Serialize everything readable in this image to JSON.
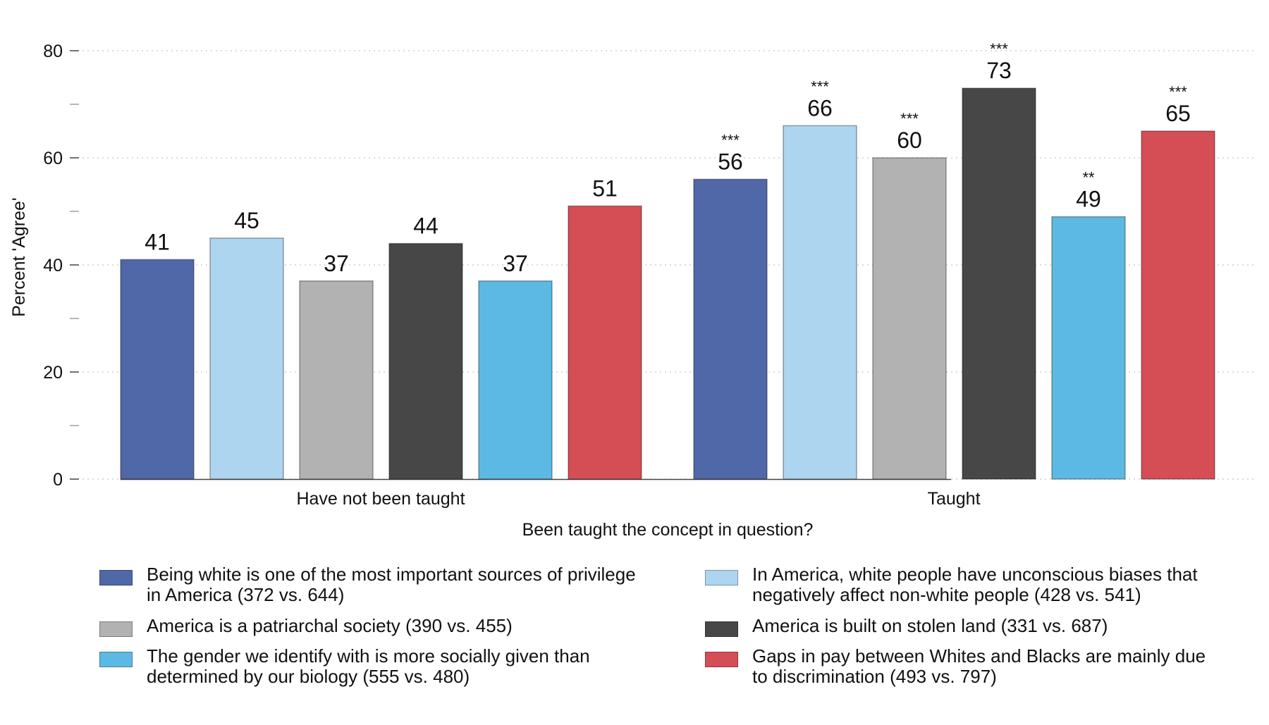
{
  "chart_data": {
    "type": "bar",
    "ylabel": "Percent 'Agree'",
    "xlabel": "Been taught the concept in question?",
    "ylim": [
      0,
      80
    ],
    "yticks": [
      0,
      20,
      40,
      60,
      80
    ],
    "grid": true,
    "legend_position": "bottom",
    "categories": [
      "Have not been taught",
      "Taught"
    ],
    "series": [
      {
        "name": "Being white is one of the most important sources of privilege\nin America (372 vs. 644)",
        "color": "#5068a7",
        "values": [
          41,
          56
        ],
        "labels": [
          "41",
          "56"
        ],
        "significance": [
          "",
          "***"
        ]
      },
      {
        "name": "In America, white people have unconscious biases that\nnegatively affect non-white people (428 vs. 541)",
        "color": "#aed5f0",
        "values": [
          45,
          66
        ],
        "labels": [
          "45",
          "66"
        ],
        "significance": [
          "",
          "***"
        ]
      },
      {
        "name": "America is a patriarchal society (390 vs. 455)",
        "color": "#b2b2b2",
        "values": [
          37,
          60
        ],
        "labels": [
          "37",
          "60"
        ],
        "significance": [
          "",
          "***"
        ]
      },
      {
        "name": "America is built on stolen land (331 vs. 687)",
        "color": "#474747",
        "values": [
          44,
          73
        ],
        "labels": [
          "44",
          "73"
        ],
        "significance": [
          "",
          "***"
        ]
      },
      {
        "name": "The gender we identify with is more socially given than\ndetermined by our biology (555 vs. 480)",
        "color": "#5cb9e3",
        "values": [
          37,
          49
        ],
        "labels": [
          "37",
          "49"
        ],
        "significance": [
          "",
          "**"
        ]
      },
      {
        "name": "Gaps in pay between Whites and Blacks are mainly due\nto discrimination (493 vs. 797)",
        "color": "#d54e56",
        "values": [
          51,
          65
        ],
        "labels": [
          "51",
          "65"
        ],
        "significance": [
          "",
          "***"
        ]
      }
    ]
  }
}
